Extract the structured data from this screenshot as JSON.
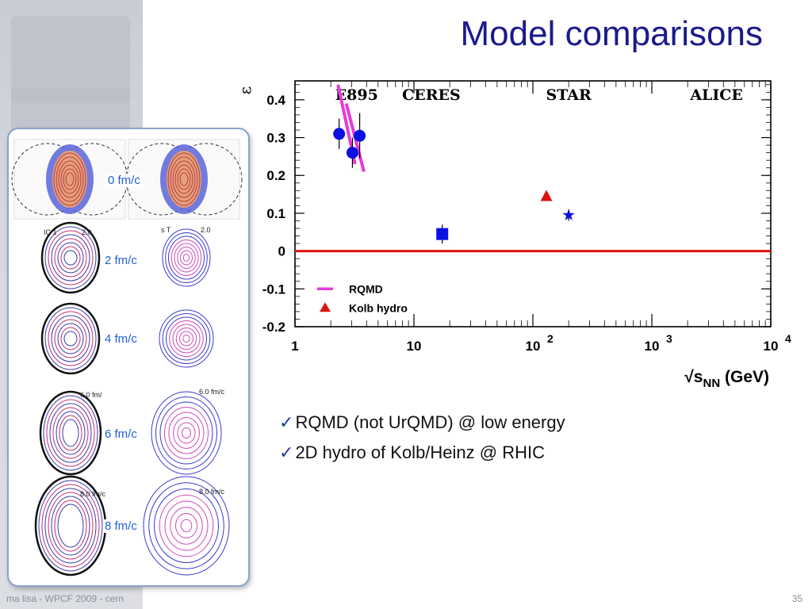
{
  "slide": {
    "title": "Model comparisons",
    "footer": "ma lisa - WPCF 2009 - cern",
    "page_number": "35"
  },
  "sidebar": {
    "time_labels": [
      "0 fm/c",
      "2 fm/c",
      "4 fm/c",
      "6 fm/c",
      "8 fm/c"
    ],
    "mini_labels": [
      "IC 1",
      "2.0",
      "s T",
      "2.0",
      "6.0 fm/",
      "6.0 fm/c",
      "8.0 fm/c",
      "8.0 fm/c"
    ]
  },
  "bullets": [
    "RQMD (not UrQMD) @ low energy",
    "2D hydro of Kolb/Heinz @ RHIC"
  ],
  "colors": {
    "title": "#1a1a8c",
    "data_points": "#0a10e0",
    "rqmd": "#e83ad8",
    "hydro": "#e01010",
    "zero_line": "#e01010"
  },
  "chart_data": {
    "type": "scatter",
    "xscale": "log",
    "xlim": [
      1,
      10000
    ],
    "ylim": [
      -0.2,
      0.45
    ],
    "ylabel": "ε",
    "xlabel_parts": [
      "√s",
      "NN",
      " (GeV)"
    ],
    "x_tick_labels": [
      "1",
      "10",
      "10",
      "10",
      "10"
    ],
    "x_tick_exponents": [
      "",
      "",
      "2",
      "3",
      "4"
    ],
    "y_ticks": [
      0.4,
      0.3,
      0.2,
      0.1,
      0,
      -0.1,
      -0.2
    ],
    "y_tick_labels": [
      "0.4",
      "0.3",
      "0.2",
      "0.1",
      "0",
      "-0.1",
      "-0.2"
    ],
    "experiment_labels": [
      {
        "text": "E895",
        "x": 3.3
      },
      {
        "text": "CERES",
        "x": 14
      },
      {
        "text": "STAR",
        "x": 200
      },
      {
        "text": "ALICE",
        "x": 3500
      }
    ],
    "series": [
      {
        "name": "E895",
        "marker": "circle",
        "points": [
          [
            2.35,
            0.31,
            0.04
          ],
          [
            3.04,
            0.26,
            0.04
          ],
          [
            3.5,
            0.305,
            0.06
          ]
        ]
      },
      {
        "name": "CERES",
        "marker": "square",
        "points": [
          [
            17.3,
            0.045,
            0.025
          ]
        ]
      },
      {
        "name": "STAR",
        "marker": "star",
        "points": [
          [
            200,
            0.095,
            0.015
          ]
        ]
      },
      {
        "name": "Kolb hydro",
        "marker": "triangle",
        "points": [
          [
            130,
            0.145,
            0
          ]
        ]
      }
    ],
    "rqmd_curves": [
      [
        [
          2.3,
          0.44
        ],
        [
          3.2,
          0.23
        ]
      ],
      [
        [
          2.7,
          0.39
        ],
        [
          3.8,
          0.21
        ]
      ]
    ],
    "zero_line": 0,
    "legend": {
      "position": "bottom-left",
      "entries": [
        {
          "label": "RQMD",
          "symbol": "line"
        },
        {
          "label": "Kolb hydro",
          "symbol": "triangle"
        }
      ]
    }
  }
}
